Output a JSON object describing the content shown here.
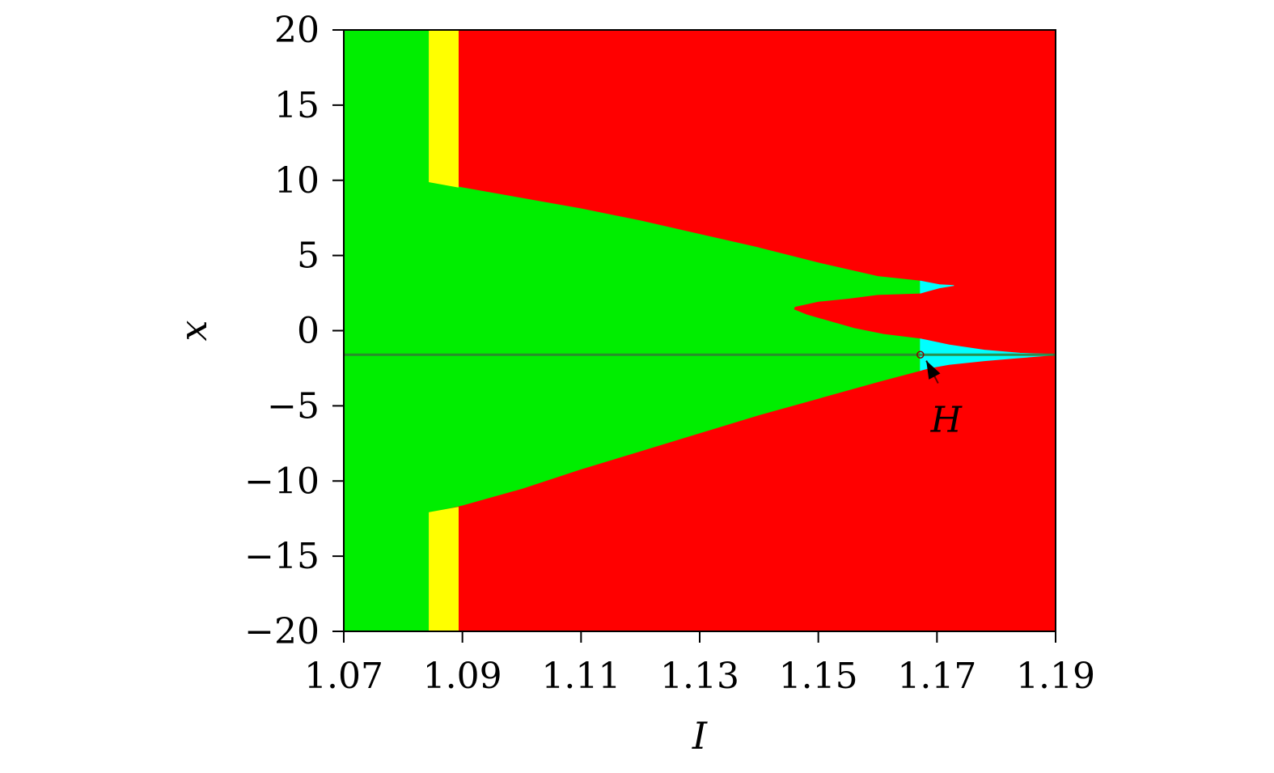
{
  "chart_data": {
    "type": "heatmap",
    "title": "",
    "xlabel": "I",
    "ylabel": "x",
    "xlim": [
      1.07,
      1.19
    ],
    "ylim": [
      -20,
      20
    ],
    "xticks": [
      1.07,
      1.09,
      1.11,
      1.13,
      1.15,
      1.17,
      1.19
    ],
    "xtick_labels": [
      "1.07",
      "1.09",
      "1.11",
      "1.13",
      "1.15",
      "1.17",
      "1.19"
    ],
    "yticks": [
      20,
      15,
      10,
      5,
      0,
      -5,
      -10,
      -15,
      -20
    ],
    "ytick_labels": [
      "20",
      "15",
      "10",
      "5",
      "0",
      "−5",
      "−10",
      "−15",
      "−20"
    ],
    "grid": false,
    "colors": {
      "background_region": "#ff0000",
      "green_region": "#00ee00",
      "yellow_region": "#ffff00",
      "cyan_region": "#00ffff",
      "steady_line": "#2e7d32"
    },
    "regions": [
      {
        "color": "#00ee00",
        "polygon": [
          [
            1.07,
            20
          ],
          [
            1.0844,
            20
          ],
          [
            1.0844,
            9.9
          ],
          [
            1.09,
            9.5
          ],
          [
            1.1,
            8.8
          ],
          [
            1.11,
            8.1
          ],
          [
            1.12,
            7.3
          ],
          [
            1.13,
            6.4
          ],
          [
            1.14,
            5.5
          ],
          [
            1.15,
            4.5
          ],
          [
            1.16,
            3.6
          ],
          [
            1.1672,
            3.3
          ],
          [
            1.1672,
            2.5
          ],
          [
            1.16,
            2.4
          ],
          [
            1.155,
            2.15
          ],
          [
            1.15,
            1.95
          ],
          [
            1.146,
            1.6
          ],
          [
            1.1458,
            1.4
          ],
          [
            1.148,
            1.05
          ],
          [
            1.152,
            0.6
          ],
          [
            1.156,
            0.15
          ],
          [
            1.161,
            -0.25
          ],
          [
            1.1672,
            -0.55
          ],
          [
            1.1672,
            -2.65
          ],
          [
            1.16,
            -3.4
          ],
          [
            1.15,
            -4.5
          ],
          [
            1.14,
            -5.6
          ],
          [
            1.13,
            -6.8
          ],
          [
            1.12,
            -8.0
          ],
          [
            1.11,
            -9.2
          ],
          [
            1.1,
            -10.5
          ],
          [
            1.09,
            -11.6
          ],
          [
            1.0844,
            -12.1
          ],
          [
            1.0844,
            -20
          ],
          [
            1.07,
            -20
          ]
        ]
      },
      {
        "color": "#ffff00",
        "polygon": [
          [
            1.0844,
            20
          ],
          [
            1.0893,
            20
          ],
          [
            1.0893,
            9.55
          ],
          [
            1.0844,
            9.9
          ]
        ]
      },
      {
        "color": "#ffff00",
        "polygon": [
          [
            1.0844,
            -12.1
          ],
          [
            1.0893,
            -11.75
          ],
          [
            1.0893,
            -20
          ],
          [
            1.0844,
            -20
          ]
        ]
      },
      {
        "color": "#00ffff",
        "polygon": [
          [
            1.1672,
            3.3
          ],
          [
            1.1704,
            3.05
          ],
          [
            1.1728,
            3.0
          ],
          [
            1.1704,
            2.85
          ],
          [
            1.1672,
            2.5
          ]
        ]
      },
      {
        "color": "#00ffff",
        "polygon": [
          [
            1.1672,
            -0.55
          ],
          [
            1.172,
            -0.95
          ],
          [
            1.178,
            -1.3
          ],
          [
            1.184,
            -1.5
          ],
          [
            1.1895,
            -1.58
          ],
          [
            1.1895,
            -1.62
          ],
          [
            1.184,
            -1.8
          ],
          [
            1.178,
            -2.0
          ],
          [
            1.172,
            -2.25
          ],
          [
            1.1685,
            -2.5
          ],
          [
            1.1672,
            -2.65
          ]
        ]
      }
    ],
    "steady_state_line": {
      "y": -1.6,
      "x_from": 1.07,
      "x_to": 1.19
    },
    "annotations": [
      {
        "text": "H",
        "point": [
          1.1672,
          -1.6
        ],
        "arrow_to": [
          1.1682,
          -2.0
        ],
        "arrow_from": [
          1.1702,
          -3.5
        ]
      }
    ]
  }
}
